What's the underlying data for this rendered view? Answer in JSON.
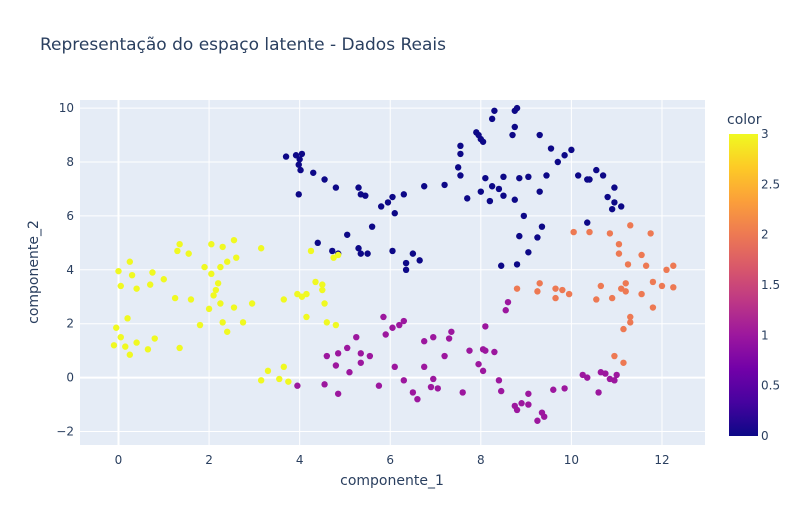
{
  "chart_data": {
    "type": "scatter",
    "title": "Representação do espaço latente - Dados Reais",
    "xlabel": "componente_1",
    "ylabel": "componente_2",
    "xlim": [
      -0.85,
      12.95
    ],
    "ylim": [
      -2.5,
      10.3
    ],
    "xticks": [
      "0",
      "2",
      "4",
      "6",
      "8",
      "10",
      "12"
    ],
    "yticks": [
      "−2",
      "0",
      "2",
      "4",
      "6",
      "8",
      "10"
    ],
    "xtick_values": [
      0,
      2,
      4,
      6,
      8,
      10,
      12
    ],
    "ytick_values": [
      -2,
      0,
      2,
      4,
      6,
      8,
      10
    ],
    "grid": true,
    "background": "#e5ecf6",
    "colorbar": {
      "title": "color",
      "range": [
        0,
        3
      ],
      "ticks": [
        "0",
        "0.5",
        "1",
        "1.5",
        "2",
        "2.5",
        "3"
      ],
      "tick_values": [
        0,
        0.5,
        1,
        1.5,
        2,
        2.5,
        3
      ],
      "colorscale": [
        "#0d0887",
        "#46039f",
        "#7201a8",
        "#9c179e",
        "#bd3786",
        "#d8576b",
        "#ed7953",
        "#fb9f3a",
        "#fdca26",
        "#f0f921"
      ]
    },
    "series": [
      {
        "color_value": 0,
        "points": [
          [
            3.7,
            8.2
          ],
          [
            3.92,
            8.25
          ],
          [
            4.05,
            8.3
          ],
          [
            4.0,
            8.1
          ],
          [
            3.98,
            7.9
          ],
          [
            4.02,
            7.7
          ],
          [
            3.98,
            6.8
          ],
          [
            4.3,
            7.6
          ],
          [
            4.55,
            7.35
          ],
          [
            4.8,
            7.05
          ],
          [
            4.4,
            5.0
          ],
          [
            4.72,
            4.7
          ],
          [
            4.85,
            4.6
          ],
          [
            5.05,
            5.3
          ],
          [
            5.3,
            7.05
          ],
          [
            5.35,
            6.8
          ],
          [
            5.45,
            6.75
          ],
          [
            5.6,
            5.6
          ],
          [
            5.3,
            4.8
          ],
          [
            5.35,
            4.6
          ],
          [
            5.5,
            4.6
          ],
          [
            5.8,
            6.35
          ],
          [
            5.95,
            6.5
          ],
          [
            6.05,
            6.7
          ],
          [
            6.1,
            6.1
          ],
          [
            6.05,
            4.7
          ],
          [
            6.3,
            6.8
          ],
          [
            6.35,
            4.25
          ],
          [
            6.35,
            4.0
          ],
          [
            6.5,
            4.6
          ],
          [
            6.65,
            4.35
          ],
          [
            6.75,
            7.1
          ],
          [
            7.2,
            7.15
          ],
          [
            7.55,
            8.6
          ],
          [
            7.55,
            8.3
          ],
          [
            7.5,
            7.8
          ],
          [
            7.55,
            7.5
          ],
          [
            7.7,
            6.65
          ],
          [
            7.9,
            9.1
          ],
          [
            7.95,
            9.0
          ],
          [
            8.0,
            8.85
          ],
          [
            8.05,
            8.75
          ],
          [
            8.25,
            9.6
          ],
          [
            8.3,
            9.9
          ],
          [
            8.0,
            6.9
          ],
          [
            8.1,
            7.4
          ],
          [
            8.25,
            7.1
          ],
          [
            8.2,
            6.55
          ],
          [
            8.4,
            7.0
          ],
          [
            8.5,
            7.45
          ],
          [
            8.5,
            6.75
          ],
          [
            8.7,
            9.0
          ],
          [
            8.75,
            9.9
          ],
          [
            8.8,
            10.0
          ],
          [
            8.75,
            9.3
          ],
          [
            8.75,
            6.6
          ],
          [
            8.85,
            7.4
          ],
          [
            8.95,
            6.0
          ],
          [
            8.85,
            5.25
          ],
          [
            8.8,
            4.2
          ],
          [
            9.05,
            7.45
          ],
          [
            9.05,
            4.65
          ],
          [
            9.35,
            5.6
          ],
          [
            8.45,
            4.15
          ],
          [
            9.25,
            5.2
          ],
          [
            9.3,
            9.0
          ],
          [
            9.3,
            6.9
          ],
          [
            9.45,
            7.5
          ],
          [
            9.55,
            8.5
          ],
          [
            9.7,
            8.0
          ],
          [
            9.85,
            8.25
          ],
          [
            10.0,
            8.45
          ],
          [
            10.15,
            7.5
          ],
          [
            10.35,
            7.35
          ],
          [
            10.35,
            5.75
          ],
          [
            10.4,
            7.35
          ],
          [
            10.55,
            7.7
          ],
          [
            10.7,
            7.5
          ],
          [
            10.8,
            6.7
          ],
          [
            10.9,
            6.25
          ],
          [
            10.95,
            7.05
          ],
          [
            10.95,
            6.5
          ],
          [
            11.1,
            6.35
          ]
        ]
      },
      {
        "color_value": 1,
        "points": [
          [
            3.95,
            -0.3
          ],
          [
            4.55,
            -0.25
          ],
          [
            4.6,
            0.8
          ],
          [
            4.8,
            0.45
          ],
          [
            4.85,
            -0.6
          ],
          [
            4.85,
            0.9
          ],
          [
            5.05,
            1.1
          ],
          [
            5.1,
            0.2
          ],
          [
            5.25,
            1.5
          ],
          [
            5.35,
            0.9
          ],
          [
            5.35,
            0.55
          ],
          [
            5.55,
            0.8
          ],
          [
            5.75,
            -0.3
          ],
          [
            5.85,
            2.25
          ],
          [
            5.9,
            1.6
          ],
          [
            6.05,
            1.85
          ],
          [
            6.1,
            0.4
          ],
          [
            6.2,
            1.95
          ],
          [
            6.3,
            -0.1
          ],
          [
            6.3,
            2.1
          ],
          [
            6.5,
            -0.55
          ],
          [
            6.6,
            -0.8
          ],
          [
            6.75,
            1.35
          ],
          [
            6.75,
            0.4
          ],
          [
            6.9,
            -0.35
          ],
          [
            6.95,
            -0.05
          ],
          [
            6.95,
            1.5
          ],
          [
            7.05,
            -0.4
          ],
          [
            7.2,
            0.8
          ],
          [
            7.3,
            1.45
          ],
          [
            7.35,
            1.7
          ],
          [
            7.6,
            -0.55
          ],
          [
            7.75,
            1.0
          ],
          [
            7.95,
            0.5
          ],
          [
            8.05,
            1.05
          ],
          [
            8.05,
            0.25
          ],
          [
            8.1,
            1.0
          ],
          [
            8.1,
            1.9
          ],
          [
            8.3,
            0.95
          ],
          [
            8.4,
            -0.1
          ],
          [
            8.45,
            -0.5
          ],
          [
            8.55,
            2.5
          ],
          [
            8.6,
            2.8
          ],
          [
            8.75,
            -1.05
          ],
          [
            8.8,
            -1.2
          ],
          [
            8.9,
            -0.95
          ],
          [
            9.05,
            -0.6
          ],
          [
            9.05,
            -1.0
          ],
          [
            9.25,
            -1.6
          ],
          [
            9.35,
            -1.3
          ],
          [
            9.4,
            -1.45
          ],
          [
            9.6,
            -0.45
          ],
          [
            9.85,
            -0.4
          ],
          [
            10.25,
            0.1
          ],
          [
            10.35,
            0.0
          ],
          [
            10.6,
            -0.55
          ],
          [
            10.65,
            0.2
          ],
          [
            10.75,
            0.15
          ],
          [
            10.85,
            -0.05
          ],
          [
            10.95,
            -0.1
          ],
          [
            11.0,
            0.1
          ]
        ]
      },
      {
        "color_value": 2,
        "points": [
          [
            8.8,
            3.3
          ],
          [
            9.25,
            3.2
          ],
          [
            9.3,
            3.5
          ],
          [
            9.65,
            3.3
          ],
          [
            9.65,
            2.95
          ],
          [
            9.8,
            3.25
          ],
          [
            9.95,
            3.1
          ],
          [
            10.05,
            5.4
          ],
          [
            10.4,
            5.4
          ],
          [
            10.55,
            2.9
          ],
          [
            10.65,
            3.4
          ],
          [
            10.85,
            5.35
          ],
          [
            10.9,
            2.95
          ],
          [
            10.95,
            0.8
          ],
          [
            11.05,
            4.95
          ],
          [
            11.05,
            4.6
          ],
          [
            11.1,
            3.3
          ],
          [
            11.15,
            1.8
          ],
          [
            11.15,
            0.55
          ],
          [
            11.2,
            3.5
          ],
          [
            11.2,
            3.2
          ],
          [
            11.25,
            4.2
          ],
          [
            11.3,
            5.65
          ],
          [
            11.3,
            2.25
          ],
          [
            11.3,
            2.05
          ],
          [
            11.55,
            4.55
          ],
          [
            11.55,
            3.1
          ],
          [
            11.65,
            4.15
          ],
          [
            11.75,
            5.35
          ],
          [
            11.8,
            3.55
          ],
          [
            11.8,
            2.6
          ],
          [
            12.0,
            3.4
          ],
          [
            12.1,
            4.0
          ],
          [
            12.25,
            4.15
          ],
          [
            12.25,
            3.35
          ]
        ]
      },
      {
        "color_value": 3,
        "points": [
          [
            -0.1,
            1.2
          ],
          [
            -0.05,
            1.85
          ],
          [
            0.0,
            3.95
          ],
          [
            0.05,
            3.4
          ],
          [
            0.05,
            1.5
          ],
          [
            0.15,
            1.15
          ],
          [
            0.2,
            2.2
          ],
          [
            0.25,
            4.3
          ],
          [
            0.25,
            0.85
          ],
          [
            0.3,
            3.8
          ],
          [
            0.4,
            3.3
          ],
          [
            0.4,
            1.3
          ],
          [
            0.65,
            1.05
          ],
          [
            0.7,
            3.45
          ],
          [
            0.75,
            3.9
          ],
          [
            0.8,
            1.45
          ],
          [
            1.0,
            3.65
          ],
          [
            1.25,
            2.95
          ],
          [
            1.3,
            4.7
          ],
          [
            1.35,
            1.1
          ],
          [
            1.35,
            4.95
          ],
          [
            1.55,
            4.6
          ],
          [
            1.6,
            2.9
          ],
          [
            1.8,
            1.95
          ],
          [
            1.9,
            4.1
          ],
          [
            2.0,
            2.55
          ],
          [
            2.05,
            3.85
          ],
          [
            2.05,
            4.95
          ],
          [
            2.1,
            3.05
          ],
          [
            2.15,
            3.25
          ],
          [
            2.2,
            3.5
          ],
          [
            2.25,
            4.1
          ],
          [
            2.25,
            2.75
          ],
          [
            2.3,
            2.05
          ],
          [
            2.3,
            4.85
          ],
          [
            2.4,
            4.3
          ],
          [
            2.4,
            1.7
          ],
          [
            2.55,
            5.1
          ],
          [
            2.55,
            2.6
          ],
          [
            2.6,
            4.45
          ],
          [
            2.75,
            2.05
          ],
          [
            2.95,
            2.75
          ],
          [
            3.15,
            4.8
          ],
          [
            3.15,
            -0.1
          ],
          [
            3.3,
            0.25
          ],
          [
            3.55,
            -0.05
          ],
          [
            3.65,
            2.9
          ],
          [
            3.65,
            0.4
          ],
          [
            3.75,
            -0.15
          ],
          [
            3.95,
            3.1
          ],
          [
            4.05,
            3.0
          ],
          [
            4.15,
            3.1
          ],
          [
            4.15,
            2.25
          ],
          [
            4.25,
            4.7
          ],
          [
            4.35,
            3.55
          ],
          [
            4.5,
            3.25
          ],
          [
            4.5,
            3.45
          ],
          [
            4.55,
            2.75
          ],
          [
            4.6,
            2.05
          ],
          [
            4.75,
            4.45
          ],
          [
            4.8,
            1.95
          ],
          [
            4.85,
            4.55
          ]
        ]
      }
    ]
  }
}
